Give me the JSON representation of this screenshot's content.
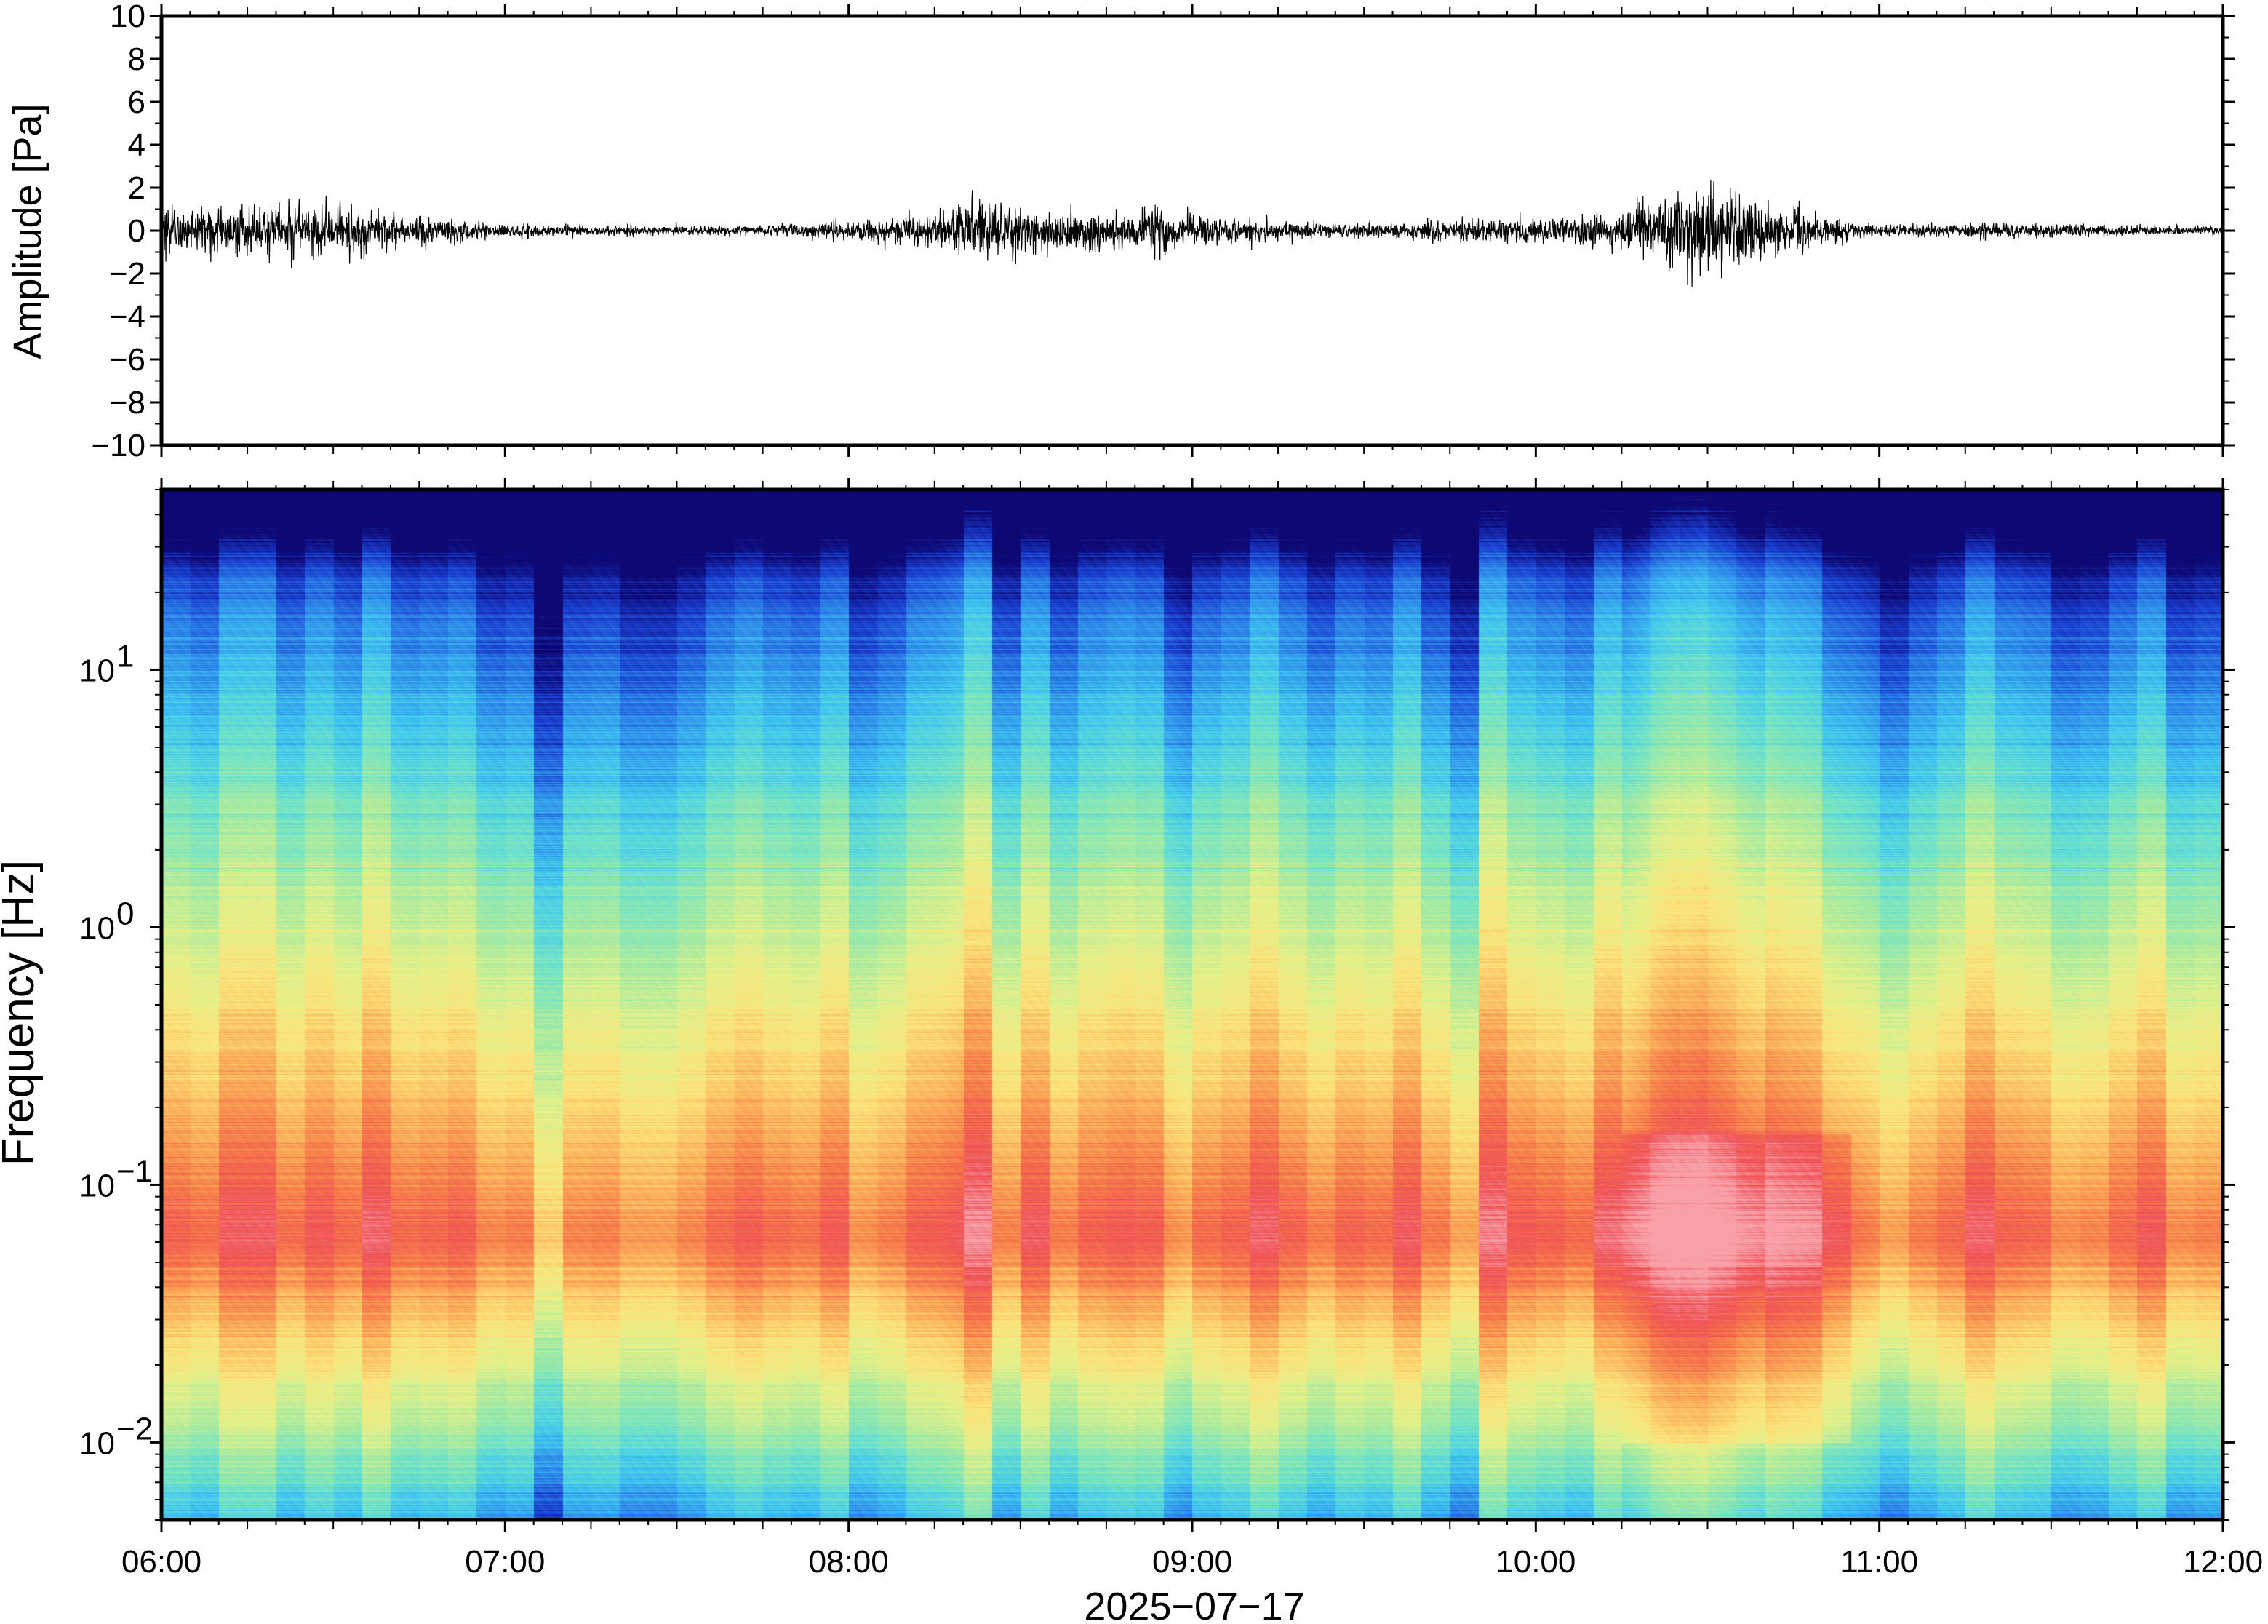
{
  "chart_data": [
    {
      "type": "line",
      "panel": "waveform",
      "ylabel": "Amplitude [Pa]",
      "ylim": [
        -10,
        10
      ],
      "yticks": [
        "10",
        "8",
        "6",
        "4",
        "2",
        "0",
        "−2",
        "−4",
        "−6",
        "−8",
        "−10"
      ],
      "ytick_values": [
        10,
        8,
        6,
        4,
        2,
        0,
        -2,
        -4,
        -6,
        -8,
        -10
      ],
      "xlim": [
        "06:00",
        "12:00"
      ],
      "line_color": "#000000",
      "envelope": {
        "x": [
          "06:00",
          "06:15",
          "06:30",
          "06:45",
          "07:00",
          "07:15",
          "07:30",
          "07:45",
          "08:00",
          "08:15",
          "08:20",
          "08:30",
          "08:45",
          "08:55",
          "09:00",
          "09:15",
          "09:30",
          "09:45",
          "10:00",
          "10:15",
          "10:20",
          "10:25",
          "10:30",
          "10:35",
          "10:40",
          "10:45",
          "10:55",
          "11:00",
          "11:15",
          "11:30",
          "11:45",
          "12:00"
        ],
        "y": [
          1.1,
          1.0,
          1.0,
          0.6,
          0.3,
          0.2,
          0.2,
          0.2,
          0.4,
          0.7,
          1.0,
          0.9,
          0.8,
          1.0,
          0.6,
          0.4,
          0.3,
          0.4,
          0.5,
          0.7,
          1.2,
          1.6,
          1.8,
          1.5,
          1.2,
          0.9,
          0.5,
          0.2,
          0.3,
          0.3,
          0.2,
          0.15
        ]
      }
    },
    {
      "type": "heatmap",
      "panel": "spectrogram",
      "ylabel": "Frequency [Hz]",
      "xlabel": "2025−07−17",
      "yscale": "log",
      "ylim": [
        0.005,
        50
      ],
      "yticks": [
        0.01,
        0.1,
        1,
        10
      ],
      "ytick_labels": [
        {
          "base": "10",
          "exp": "−2"
        },
        {
          "base": "10",
          "exp": "−1"
        },
        {
          "base": "10",
          "exp": "0"
        },
        {
          "base": "10",
          "exp": "1"
        }
      ],
      "xticks": [
        "06:00",
        "07:00",
        "08:00",
        "09:00",
        "10:00",
        "11:00",
        "12:00"
      ],
      "xlim": [
        "06:00",
        "12:00"
      ],
      "colormap": [
        "#0d0873",
        "#1a3fd1",
        "#2f8cea",
        "#41c8f0",
        "#6fe3c9",
        "#a8eba0",
        "#e4f18a",
        "#fde37a",
        "#fcb45c",
        "#f67a4a",
        "#ef5055",
        "#f8a0a8"
      ],
      "peak_frequency_hz": 0.06,
      "strongest_interval": [
        "10:15",
        "10:55"
      ]
    }
  ]
}
